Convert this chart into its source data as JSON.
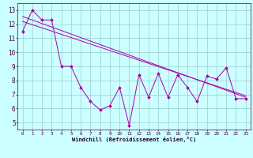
{
  "x": [
    0,
    1,
    2,
    3,
    4,
    5,
    6,
    7,
    8,
    9,
    10,
    11,
    12,
    13,
    14,
    15,
    16,
    17,
    18,
    19,
    20,
    21,
    22,
    23
  ],
  "windchill": [
    11.5,
    13.0,
    12.3,
    12.3,
    9.0,
    9.0,
    7.5,
    6.5,
    5.9,
    6.2,
    7.5,
    4.8,
    8.4,
    6.8,
    8.5,
    6.8,
    8.4,
    7.5,
    6.5,
    8.3,
    8.1,
    8.9,
    6.7,
    6.7
  ],
  "trend1": [
    12.2,
    11.97,
    11.74,
    11.51,
    11.28,
    11.05,
    10.82,
    10.59,
    10.36,
    10.13,
    9.9,
    9.67,
    9.44,
    9.21,
    8.98,
    8.75,
    8.52,
    8.29,
    8.06,
    7.83,
    7.6,
    7.37,
    7.14,
    6.91
  ],
  "trend2": [
    12.55,
    12.3,
    12.05,
    11.8,
    11.55,
    11.3,
    11.05,
    10.8,
    10.55,
    10.3,
    10.05,
    9.8,
    9.55,
    9.3,
    9.05,
    8.8,
    8.55,
    8.3,
    8.05,
    7.8,
    7.55,
    7.3,
    7.05,
    6.8
  ],
  "line_color": "#aa00aa",
  "bg_color": "#ccffff",
  "grid_color": "#99cccc",
  "xlabel": "Windchill (Refroidissement éolien,°C)",
  "ylim": [
    4.5,
    13.5
  ],
  "xlim": [
    -0.5,
    23.5
  ],
  "yticks": [
    5,
    6,
    7,
    8,
    9,
    10,
    11,
    12,
    13
  ],
  "xticks": [
    0,
    1,
    2,
    3,
    4,
    5,
    6,
    7,
    8,
    9,
    10,
    11,
    12,
    13,
    14,
    15,
    16,
    17,
    18,
    19,
    20,
    21,
    22,
    23
  ]
}
